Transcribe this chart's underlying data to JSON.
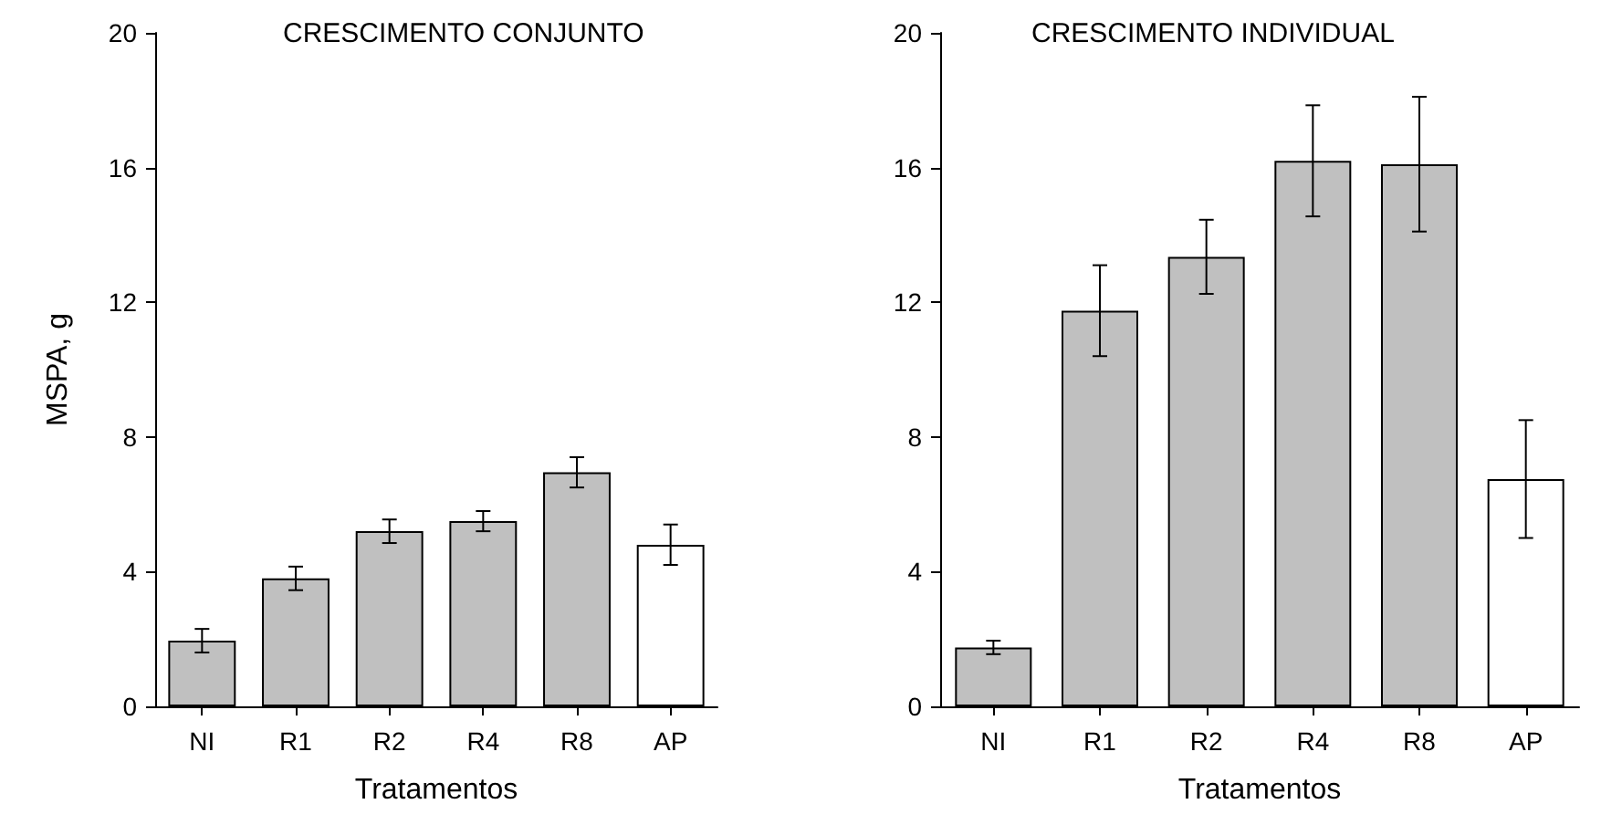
{
  "chart_data": [
    {
      "type": "bar",
      "title": "CRESCIMENTO CONJUNTO",
      "xlabel": "Tratamentos",
      "ylabel": "MSPA, g",
      "categories": [
        "NI",
        "R1",
        "R2",
        "R4",
        "R8",
        "AP"
      ],
      "values": [
        1.95,
        3.8,
        5.2,
        5.5,
        6.95,
        4.8
      ],
      "colors": [
        "#c0c0c0",
        "#c0c0c0",
        "#c0c0c0",
        "#c0c0c0",
        "#c0c0c0",
        "#ffffff"
      ],
      "errors": [
        0.35,
        0.35,
        0.35,
        0.3,
        0.45,
        0.6
      ],
      "ylim": [
        0,
        20
      ],
      "yticks": [
        0,
        4,
        8,
        12,
        16,
        20
      ]
    },
    {
      "type": "bar",
      "title": "CRESCIMENTO INDIVIDUAL",
      "xlabel": "Tratamentos",
      "categories": [
        "NI",
        "R1",
        "R2",
        "R4",
        "R8",
        "AP"
      ],
      "values": [
        1.75,
        11.75,
        13.35,
        16.2,
        16.1,
        6.75
      ],
      "colors": [
        "#c0c0c0",
        "#c0c0c0",
        "#c0c0c0",
        "#c0c0c0",
        "#c0c0c0",
        "#ffffff"
      ],
      "errors": [
        0.2,
        1.35,
        1.1,
        1.65,
        2.0,
        1.75
      ],
      "ylim": [
        0,
        20
      ],
      "yticks": [
        0,
        4,
        8,
        12,
        16,
        20
      ]
    }
  ]
}
